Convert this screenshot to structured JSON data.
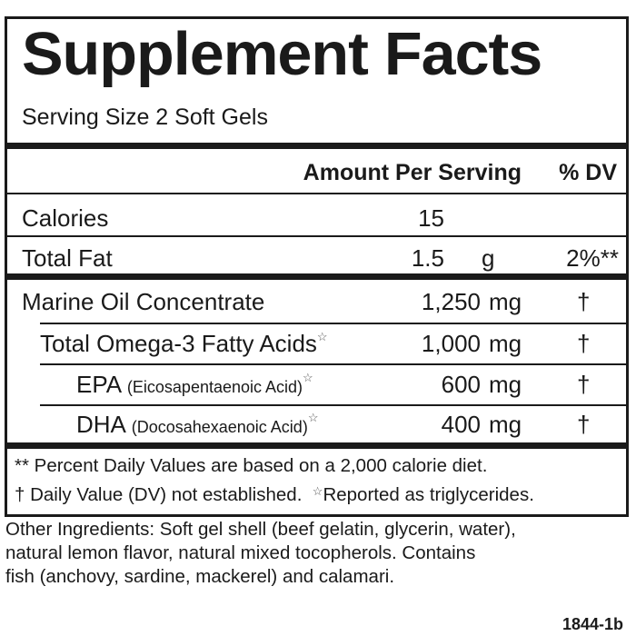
{
  "title": "Supplement Facts",
  "serving_size": "Serving Size 2 Soft Gels",
  "header": {
    "amount": "Amount Per Serving",
    "dv": "% DV"
  },
  "top_rows": [
    {
      "name": "Calories",
      "amount": "15",
      "unit": "",
      "dv": ""
    },
    {
      "name": "Total Fat",
      "amount": "1.5",
      "unit": "g",
      "dv": "2%**"
    }
  ],
  "rows": [
    {
      "name": "Marine Oil Concentrate",
      "detail": "",
      "star": "",
      "amount": "1,250",
      "unit": "mg",
      "dv": "†"
    },
    {
      "name": "Total Omega-3 Fatty Acids",
      "detail": "",
      "star": "☆",
      "amount": "1,000",
      "unit": "mg",
      "dv": "†"
    },
    {
      "name": "EPA",
      "detail": "(Eicosapentaenoic Acid)",
      "star": "☆",
      "amount": "600",
      "unit": "mg",
      "dv": "†"
    },
    {
      "name": "DHA",
      "detail": "(Docosahexaenoic Acid)",
      "star": "☆",
      "amount": "400",
      "unit": "mg",
      "dv": "†"
    }
  ],
  "footnotes": {
    "line1": "** Percent Daily Values are based on a 2,000 calorie diet.",
    "line2a": "† Daily Value (DV) not established.",
    "line2_star": "☆",
    "line2b": "Reported as triglycerides."
  },
  "other_ingredients": [
    "Other Ingredients: Soft gel shell (beef gelatin, glycerin, water),",
    "natural lemon flavor, natural mixed tocopherols. Contains",
    "fish (anchovy, sardine, mackerel) and calamari."
  ],
  "code": "1844-1b"
}
